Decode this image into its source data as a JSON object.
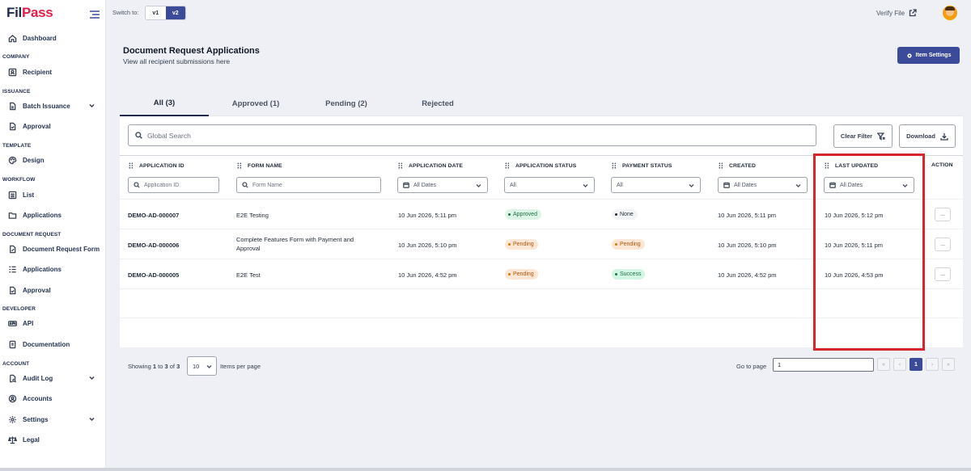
{
  "brand": {
    "logo_part1": "Fil",
    "logo_part2": "Pass"
  },
  "topbar": {
    "switch_label": "Switch to:",
    "v1": "v1",
    "v2": "v2",
    "verify_file": "Verify File"
  },
  "sidebar": {
    "dashboard": "Dashboard",
    "sec_company": "COMPANY",
    "recipient": "Recipient",
    "sec_issuance": "ISSUANCE",
    "batch_issuance": "Batch Issuance",
    "approval": "Approval",
    "sec_template": "TEMPLATE",
    "design": "Design",
    "sec_workflow": "WORKFLOW",
    "list": "List",
    "applications": "Applications",
    "sec_docreq": "DOCUMENT REQUEST",
    "doc_request_form": "Document Request Form",
    "dr_applications": "Applications",
    "dr_approval": "Approval",
    "sec_developer": "DEVELOPER",
    "api": "API",
    "documentation": "Documentation",
    "sec_account": "ACCOUNT",
    "audit_log": "Audit Log",
    "accounts": "Accounts",
    "settings": "Settings",
    "legal": "Legal"
  },
  "header": {
    "title": "Document Request Applications",
    "subtitle": "View all recipient submissions here",
    "item_settings": "Item Settings"
  },
  "tabs": [
    {
      "label": "All (3)"
    },
    {
      "label": "Approved (1)"
    },
    {
      "label": "Pending (2)"
    },
    {
      "label": "Rejected"
    }
  ],
  "toolbar": {
    "search_placeholder": "Global Search",
    "clear_filter": "Clear Filter",
    "download": "Download"
  },
  "columns": {
    "app_id": "APPLICATION ID",
    "form_name": "FORM NAME",
    "app_date": "APPLICATION DATE",
    "app_status": "APPLICATION STATUS",
    "pay_status": "PAYMENT STATUS",
    "created": "CREATED",
    "last_updated": "LAST UPDATED",
    "action": "ACTION"
  },
  "filters": {
    "app_id_placeholder": "Application ID",
    "form_name_placeholder": "Form Name",
    "all_dates": "All Dates",
    "all": "All"
  },
  "rows": [
    {
      "id": "DEMO-AD-000007",
      "form": "E2E Testing",
      "date": "10 Jun 2026, 5:11 pm",
      "status": "Approved",
      "payment": "None",
      "created": "10 Jun 2026, 5:11 pm",
      "updated": "10 Jun 2026, 5:12 pm",
      "action": "..."
    },
    {
      "id": "DEMO-AD-000006",
      "form_line1": "Complete Features Form with Payment and",
      "form_line2": "Approval",
      "date": "10 Jun 2026, 5:10 pm",
      "status": "Pending",
      "payment": "Pending",
      "created": "10 Jun 2026, 5:10 pm",
      "updated": "10 Jun 2026, 5:11 pm",
      "action": "..."
    },
    {
      "id": "DEMO-AD-000005",
      "form": "E2E Test",
      "date": "10 Jun 2026, 4:52 pm",
      "status": "Pending",
      "payment": "Success",
      "created": "10 Jun 2026, 4:52 pm",
      "updated": "10 Jun 2026, 4:53 pm",
      "action": "..."
    }
  ],
  "pagination": {
    "showing_prefix": "Showing ",
    "from": "1",
    "to_word": " to ",
    "to": "3",
    "of_word": " of ",
    "total": "3",
    "per_page": "10",
    "items_per_page": "Items per page",
    "go_to": "Go to page",
    "page_value": "1",
    "first": "«",
    "prev": "‹",
    "current": "1",
    "next": "›",
    "last": "»"
  },
  "colors": {
    "accent": "#3c4a9a",
    "highlight": "#d7262b"
  }
}
